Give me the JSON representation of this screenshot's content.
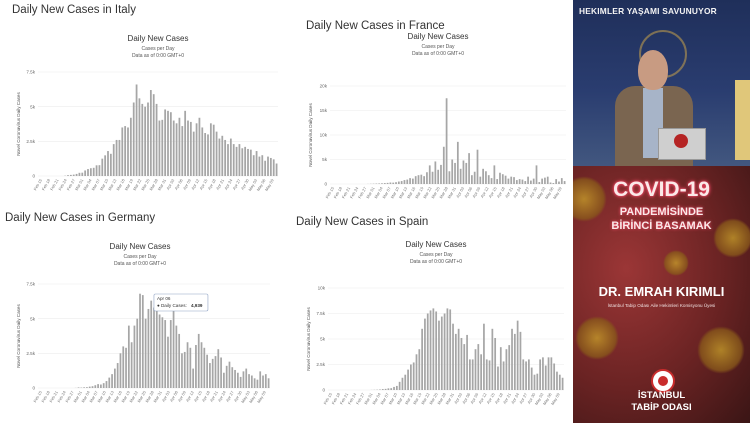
{
  "panels": [
    {
      "key": "italy",
      "heading": "Daily New Cases in Italy",
      "chart_title": "Daily New Cases",
      "chart_subtitle1": "Cases per Day",
      "chart_subtitle2": "Data as of 0:00 GMT+0",
      "ylabel": "Novel Coronavirus Daily Cases",
      "yticks": [
        "7.5k",
        "5k",
        "2.5k",
        "0"
      ],
      "ymax": 7500,
      "xticks": [
        "Feb 15",
        "Feb 18",
        "Feb 21",
        "Feb 24",
        "Feb 27",
        "Mar 01",
        "Mar 04",
        "Mar 07",
        "Mar 10",
        "Mar 13",
        "Mar 16",
        "Mar 19",
        "Mar 22",
        "Mar 25",
        "Mar 28",
        "Mar 31",
        "Apr 03",
        "Apr 06",
        "Apr 09",
        "Apr 12",
        "Apr 15",
        "Apr 18",
        "Apr 21",
        "Apr 24",
        "Apr 27",
        "Apr 30",
        "May 03",
        "May 06",
        "May 09"
      ]
    },
    {
      "key": "france",
      "heading": "Daily New Cases in France",
      "chart_title": "Daily New Cases",
      "chart_subtitle1": "Cases per Day",
      "chart_subtitle2": "Data as of 0:00 GMT+0",
      "ylabel": "Novel Coronavirus Daily Cases",
      "yticks": [
        "20k",
        "15k",
        "10k",
        "5k",
        "0"
      ],
      "ymax": 20000,
      "xticks": [
        "Feb 15",
        "Feb 18",
        "Feb 21",
        "Feb 24",
        "Feb 27",
        "Mar 01",
        "Mar 04",
        "Mar 07",
        "Mar 10",
        "Mar 13",
        "Mar 16",
        "Mar 19",
        "Mar 22",
        "Mar 25",
        "Mar 28",
        "Mar 31",
        "Apr 03",
        "Apr 06",
        "Apr 09",
        "Apr 12",
        "Apr 15",
        "Apr 18",
        "Apr 21",
        "Apr 24",
        "Apr 27",
        "Apr 30",
        "May 03",
        "May 06",
        "May 09"
      ]
    },
    {
      "key": "germany",
      "heading": "Daily New Cases in Germany",
      "chart_title": "Daily New Cases",
      "chart_subtitle1": "Cases per Day",
      "chart_subtitle2": "Data as of 0:00 GMT+0",
      "ylabel": "Novel Coronavirus Daily Cases",
      "yticks": [
        "7.5k",
        "5k",
        "2.5k",
        "0"
      ],
      "ymax": 7500,
      "tooltip": {
        "date": "Apr 06",
        "label": "● Daily Cases:",
        "value": "4,939"
      },
      "xticks": [
        "Feb 15",
        "Feb 18",
        "Feb 21",
        "Feb 24",
        "Feb 27",
        "Mar 01",
        "Mar 04",
        "Mar 07",
        "Mar 10",
        "Mar 13",
        "Mar 16",
        "Mar 19",
        "Mar 22",
        "Mar 25",
        "Mar 28",
        "Mar 31",
        "Apr 03",
        "Apr 06",
        "Apr 09",
        "Apr 12",
        "Apr 15",
        "Apr 18",
        "Apr 21",
        "Apr 24",
        "Apr 27",
        "Apr 30",
        "May 03",
        "May 06",
        "May 09"
      ]
    },
    {
      "key": "spain",
      "heading": "Daily New Cases in Spain",
      "chart_title": "Daily New Cases",
      "chart_subtitle1": "Cases per Day",
      "chart_subtitle2": "Data as of 0:00 GMT+0",
      "ylabel": "Novel Coronavirus Daily Cases",
      "yticks": [
        "10k",
        "7.5k",
        "5k",
        "2.5k",
        "0"
      ],
      "ymax": 10000,
      "xticks": [
        "Feb 15",
        "Feb 18",
        "Feb 21",
        "Feb 24",
        "Feb 27",
        "Mar 01",
        "Mar 04",
        "Mar 07",
        "Mar 10",
        "Mar 13",
        "Mar 16",
        "Mar 19",
        "Mar 22",
        "Mar 25",
        "Mar 28",
        "Mar 31",
        "Apr 03",
        "Apr 06",
        "Apr 09",
        "Apr 12",
        "Apr 15",
        "Apr 18",
        "Apr 21",
        "Apr 24",
        "Apr 27",
        "Apr 30",
        "May 03",
        "May 06",
        "May 09"
      ]
    }
  ],
  "chart_data": [
    {
      "type": "bar",
      "title": "Daily New Cases",
      "country": "Italy",
      "ylabel": "Novel Coronavirus Daily Cases",
      "ylim": [
        0,
        7500
      ],
      "x_start": "Feb 15",
      "x_end": "May 09",
      "values": [
        0,
        0,
        0,
        0,
        0,
        0,
        0,
        0,
        0,
        20,
        60,
        80,
        100,
        150,
        230,
        240,
        400,
        500,
        560,
        590,
        770,
        780,
        1250,
        1490,
        1800,
        1600,
        2300,
        2600,
        2600,
        3500,
        3600,
        3500,
        4200,
        5300,
        6600,
        5600,
        5200,
        5000,
        5300,
        6200,
        5900,
        5200,
        4000,
        4050,
        4800,
        4700,
        4600,
        4000,
        3800,
        4200,
        3600,
        4700,
        4000,
        3900,
        3200,
        3800,
        4200,
        3500,
        3100,
        3000,
        3800,
        3700,
        3200,
        2700,
        2900,
        2600,
        2300,
        2700,
        2300,
        2100,
        2300,
        2000,
        2100,
        1950,
        1900,
        1500,
        1800,
        1400,
        1500,
        1100,
        1400,
        1300,
        1200,
        900
      ]
    },
    {
      "type": "bar",
      "title": "Daily New Cases",
      "country": "France",
      "ylabel": "Novel Coronavirus Daily Cases",
      "ylim": [
        0,
        20000
      ],
      "x_start": "Feb 15",
      "x_end": "May 09",
      "values": [
        0,
        0,
        0,
        0,
        0,
        0,
        0,
        0,
        0,
        0,
        0,
        0,
        0,
        20,
        40,
        60,
        90,
        110,
        150,
        190,
        230,
        300,
        280,
        370,
        500,
        600,
        800,
        900,
        1200,
        1100,
        1600,
        1800,
        1900,
        1600,
        2400,
        3800,
        2500,
        4600,
        2900,
        3900,
        7600,
        17500,
        2600,
        5000,
        4300,
        8600,
        3100,
        4800,
        4300,
        6300,
        1800,
        2500,
        7000,
        1500,
        3100,
        2600,
        1800,
        1200,
        3800,
        1000,
        2300,
        2000,
        1700,
        1100,
        1500,
        1400,
        800,
        1000,
        900,
        600,
        1500,
        700,
        1100,
        3800,
        400,
        1100,
        1300,
        1500,
        300,
        200,
        1000,
        500,
        1200,
        600
      ]
    },
    {
      "type": "bar",
      "title": "Daily New Cases",
      "country": "Germany",
      "ylabel": "Novel Coronavirus Daily Cases",
      "ylim": [
        0,
        7500
      ],
      "x_start": "Feb 15",
      "x_end": "May 09",
      "values": [
        0,
        0,
        0,
        0,
        0,
        0,
        0,
        0,
        0,
        0,
        0,
        0,
        0,
        10,
        40,
        30,
        50,
        60,
        100,
        130,
        200,
        280,
        250,
        350,
        500,
        750,
        1000,
        1400,
        1800,
        2500,
        3000,
        2900,
        4500,
        3300,
        4500,
        5000,
        6800,
        6700,
        5000,
        5700,
        6300,
        5800,
        6200,
        5300,
        5100,
        4900,
        3700,
        4900,
        5600,
        4500,
        3900,
        2500,
        2600,
        3300,
        2900,
        1400,
        3100,
        3900,
        3300,
        2900,
        2400,
        1800,
        2100,
        2300,
        2800,
        2200,
        1100,
        1600,
        1900,
        1500,
        1300,
        1100,
        800,
        1200,
        1400,
        1000,
        900,
        700,
        600,
        1200,
        900,
        1000,
        700
      ]
    },
    {
      "type": "bar",
      "title": "Daily New Cases",
      "country": "Spain",
      "ylabel": "Novel Coronavirus Daily Cases",
      "ylim": [
        0,
        10000
      ],
      "x_start": "Feb 15",
      "x_end": "May 09",
      "values": [
        0,
        0,
        0,
        0,
        0,
        0,
        0,
        0,
        0,
        0,
        0,
        0,
        0,
        0,
        0,
        10,
        20,
        30,
        50,
        90,
        110,
        160,
        180,
        300,
        400,
        800,
        1200,
        1500,
        2000,
        2500,
        2700,
        3500,
        4000,
        6000,
        7000,
        7500,
        7800,
        8000,
        7700,
        6800,
        7200,
        7500,
        8000,
        7900,
        6500,
        5500,
        6000,
        5100,
        4500,
        5400,
        3000,
        3000,
        4000,
        4500,
        3500,
        6500,
        3000,
        2900,
        6000,
        5100,
        2300,
        4200,
        2800,
        4000,
        4400,
        6000,
        5500,
        6800,
        5700,
        3000,
        2800,
        3000,
        2200,
        1500,
        1600,
        3000,
        3200,
        2400,
        3200,
        3200,
        2600,
        1800,
        1500,
        1200
      ]
    }
  ],
  "side": {
    "banner": "HEKIMLER YAŞAMI SAVUNUYOR",
    "poster_title1": "COVID-19",
    "poster_title2": "PANDEMİSİNDE",
    "poster_title3": "BİRİNCİ BASAMAK",
    "speaker": "DR. EMRAH KIRIMLI",
    "speaker_role": "İstanbul Tabip Odası Aile Hekimleri Komisyonu Üyesi",
    "org_line1": "İSTANBUL",
    "org_line2": "TABİP ODASI"
  }
}
